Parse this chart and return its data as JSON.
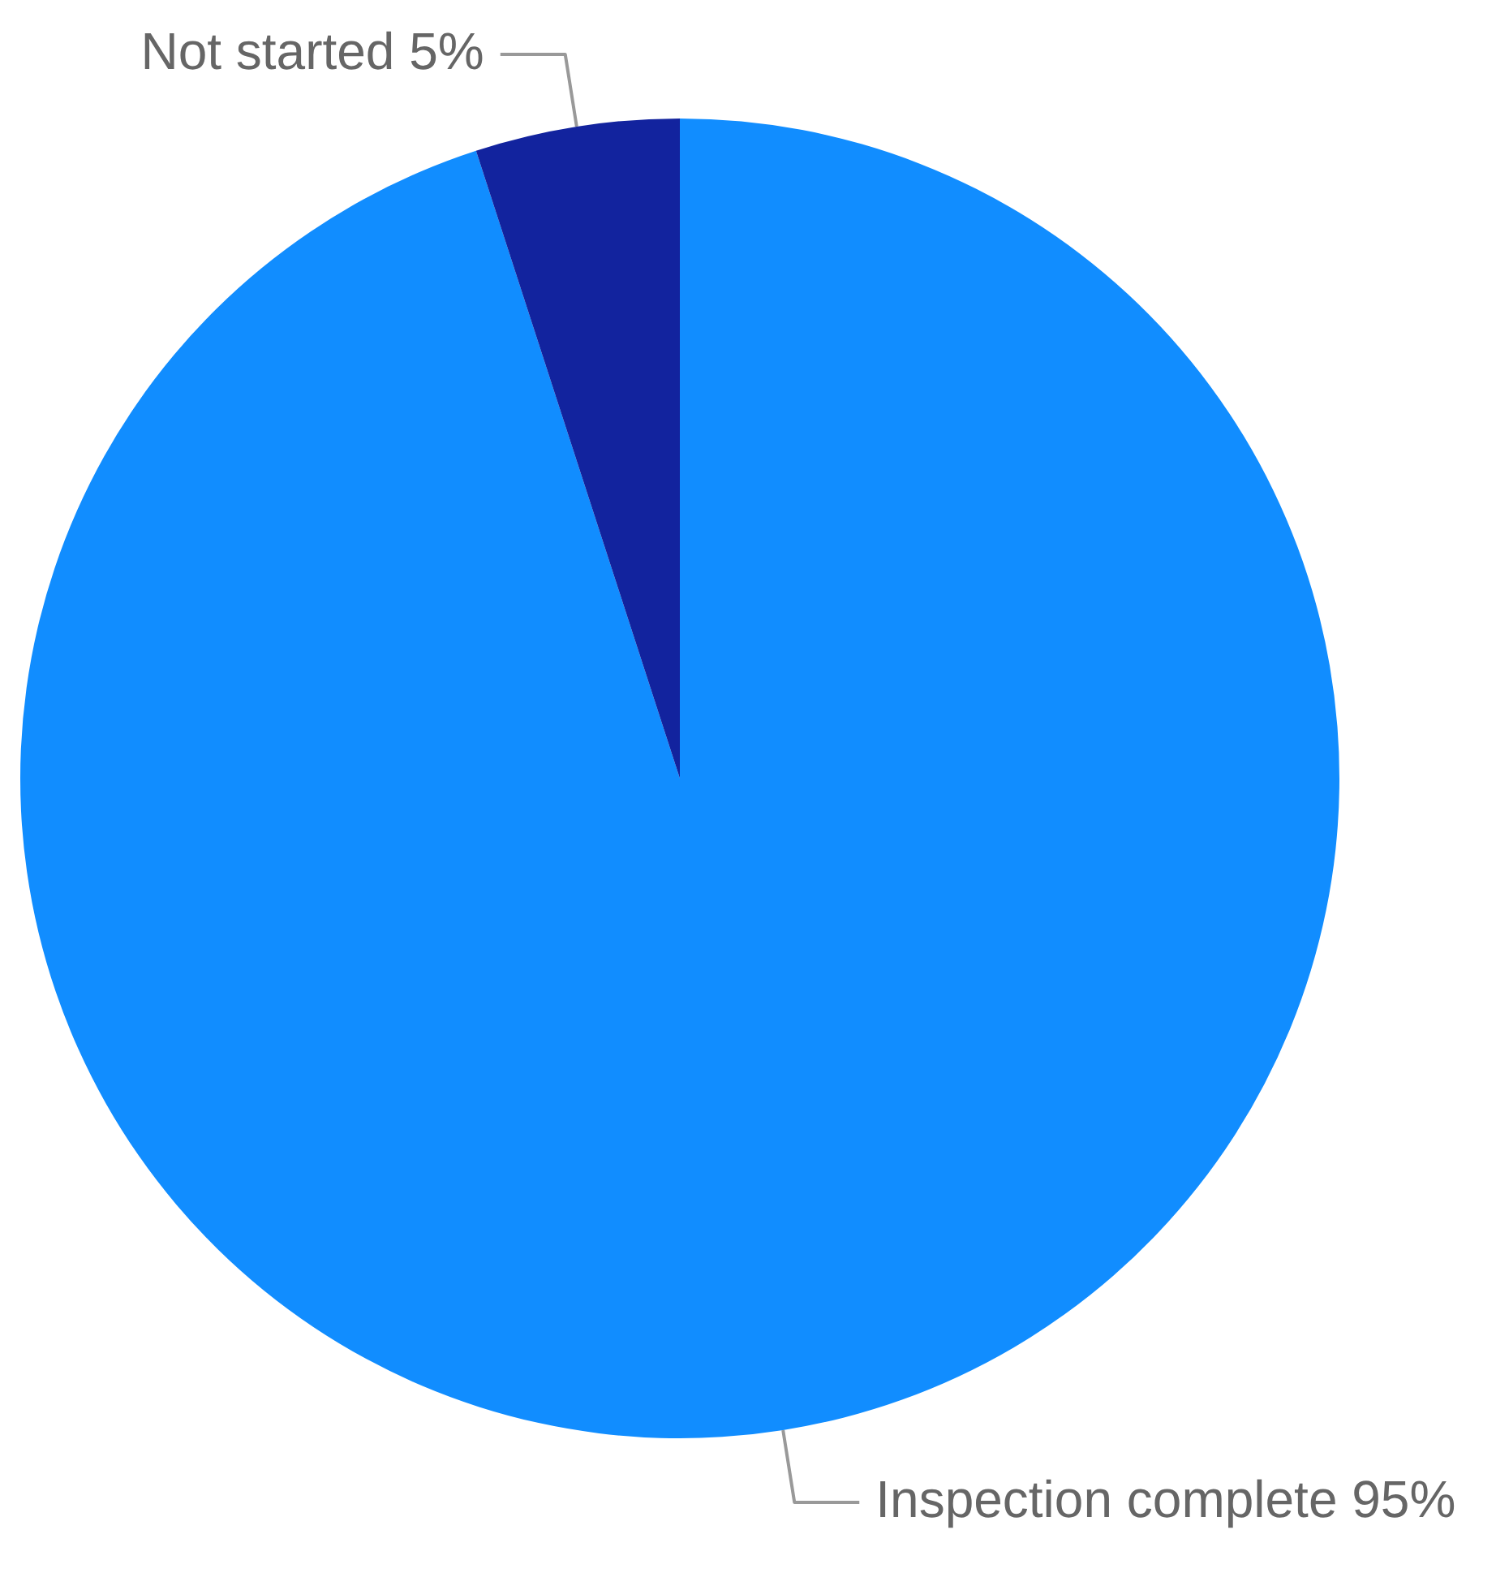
{
  "chart_data": {
    "type": "pie",
    "categories": [
      "Inspection complete",
      "Not started"
    ],
    "values": [
      95,
      5
    ],
    "colors": [
      "#118dff",
      "#12239e"
    ],
    "value_labels": [
      "95%",
      "5%"
    ],
    "legend": false
  }
}
